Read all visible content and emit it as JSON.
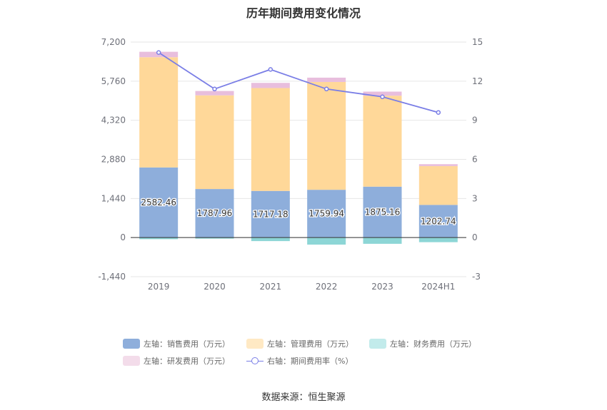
{
  "chart_data": {
    "type": "bar",
    "title": "历年期间费用变化情况",
    "categories": [
      "2019",
      "2020",
      "2021",
      "2022",
      "2023",
      "2024H1"
    ],
    "left_axis": {
      "min": -1440,
      "max": 7200,
      "ticks": [
        "7,200",
        "5,760",
        "4,320",
        "2,880",
        "1,440",
        "0",
        "-1,440"
      ],
      "tick_values": [
        7200,
        5760,
        4320,
        2880,
        1440,
        0,
        -1440
      ]
    },
    "right_axis": {
      "min": -3,
      "max": 15,
      "ticks": [
        "15",
        "12",
        "9",
        "6",
        "3",
        "0",
        "-3"
      ],
      "tick_values": [
        15,
        12,
        9,
        6,
        3,
        0,
        -3
      ]
    },
    "series": [
      {
        "name": "左轴：销售费用（万元）",
        "kind": "bar",
        "color": "#8eaedb",
        "values": [
          2582.46,
          1787.96,
          1717.18,
          1759.94,
          1875.16,
          1202.74
        ],
        "labels": [
          "2582.46",
          "1787.96",
          "1717.18",
          "1759.94",
          "1875.16",
          "1202.74"
        ]
      },
      {
        "name": "左轴：管理费用（万元）",
        "kind": "bar",
        "color": "#ffd899",
        "values": [
          4060,
          3450,
          3790,
          3970,
          3350,
          1430
        ]
      },
      {
        "name": "左轴：财务费用（万元）",
        "kind": "bar",
        "color": "#8dd6d6",
        "values": [
          -60,
          -40,
          -130,
          -260,
          -230,
          -170
        ]
      },
      {
        "name": "左轴：研发费用（万元）",
        "kind": "bar",
        "color": "#e8bedd",
        "values": [
          200,
          160,
          190,
          160,
          150,
          70
        ]
      },
      {
        "name": "右轴：期间费用率（%）",
        "kind": "line",
        "color": "#7a7ee6",
        "values": [
          14.2,
          11.4,
          12.9,
          11.4,
          10.8,
          9.6
        ]
      }
    ],
    "legend_colors": {
      "sales": "#8eaedb",
      "admin": "#ffe9c4",
      "finance": "#c2ebeb",
      "rnd": "#f3dcea",
      "rate": "#7a7ee6"
    }
  },
  "source": "数据来源：恒生聚源"
}
